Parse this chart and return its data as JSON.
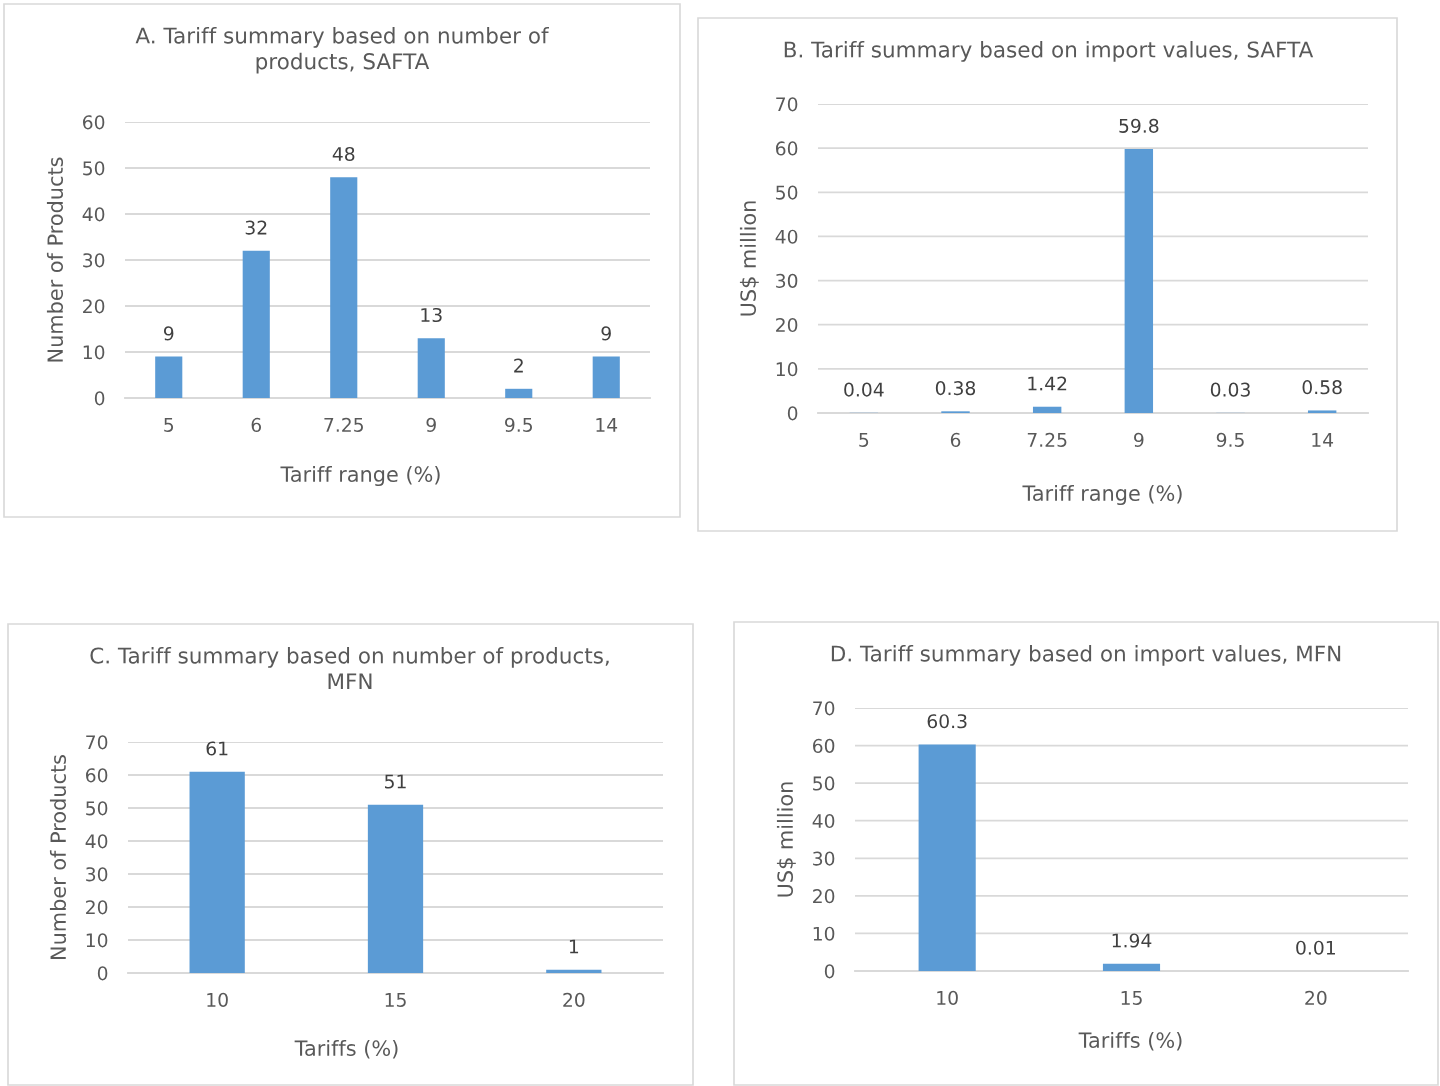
{
  "chart_data": [
    {
      "type": "bar",
      "title": "A. Tariff summary based on number of products, SAFTA",
      "xlabel": "Tariff range (%)",
      "ylabel": "Number of Products",
      "categories": [
        "5",
        "6",
        "7.25",
        "9",
        "9.5",
        "14"
      ],
      "values": [
        9,
        32,
        48,
        13,
        2,
        9
      ],
      "color": "#5b9bd5",
      "ylim": [
        0,
        60
      ],
      "yticks": [
        0,
        10,
        20,
        30,
        40,
        50,
        60
      ],
      "grid": "y",
      "data_labels": true
    },
    {
      "type": "bar",
      "title": "B. Tariff summary based on import values, SAFTA",
      "xlabel": "Tariff range (%)",
      "ylabel": "US$ million",
      "categories": [
        "5",
        "6",
        "7.25",
        "9",
        "9.5",
        "14"
      ],
      "values": [
        0.04,
        0.38,
        1.42,
        59.8,
        0.03,
        0.58
      ],
      "color": "#5b9bd5",
      "ylim": [
        0,
        70
      ],
      "yticks": [
        0,
        10,
        20,
        30,
        40,
        50,
        60,
        70
      ],
      "grid": "y",
      "data_labels": true
    },
    {
      "type": "bar",
      "title": "C. Tariff summary based on number of products, MFN",
      "xlabel": "Tariffs (%)",
      "ylabel": "Number of Products",
      "categories": [
        "10",
        "15",
        "20"
      ],
      "values": [
        61,
        51,
        1
      ],
      "color": "#5b9bd5",
      "ylim": [
        0,
        70
      ],
      "yticks": [
        0,
        10,
        20,
        30,
        40,
        50,
        60,
        70
      ],
      "grid": "y",
      "data_labels": true
    },
    {
      "type": "bar",
      "title": "D. Tariff summary based on import values, MFN",
      "xlabel": "Tariffs (%)",
      "ylabel": "US$ million",
      "categories": [
        "10",
        "15",
        "20"
      ],
      "values": [
        60.3,
        1.94,
        0.01
      ],
      "color": "#5b9bd5",
      "ylim": [
        0,
        70
      ],
      "yticks": [
        0,
        10,
        20,
        30,
        40,
        50,
        60,
        70
      ],
      "grid": "y",
      "data_labels": true
    }
  ]
}
